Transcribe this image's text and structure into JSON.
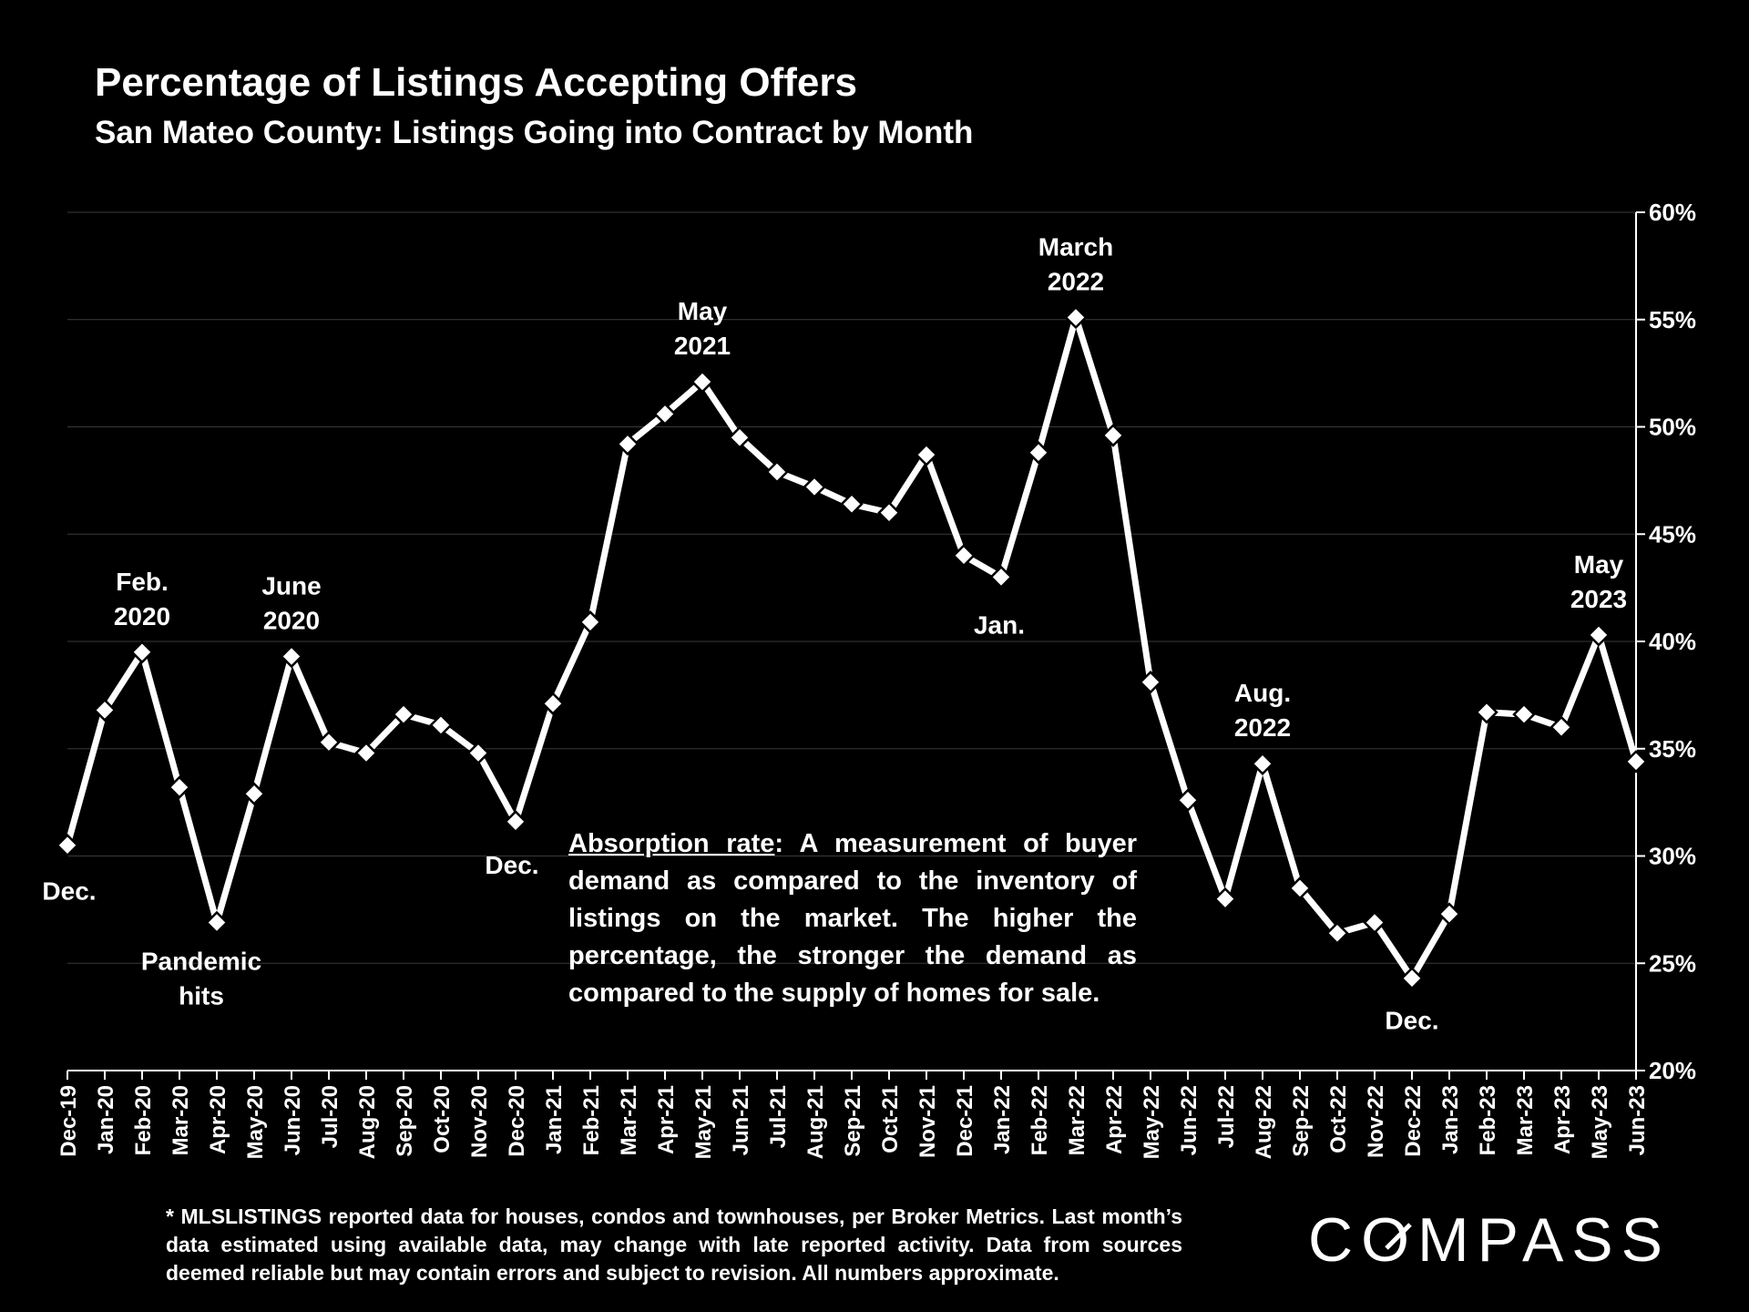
{
  "title": "Percentage of Listings Accepting Offers",
  "subtitle": "San Mateo County: Listings Going into Contract by Month",
  "definition": {
    "term": "Absorption rate",
    "text": ":  A measurement of buyer demand as compared to the inventory of listings on the market. The higher the percentage, the stronger the demand as compared to the supply of homes for sale."
  },
  "footnote": "* MLSLISTINGS reported data for houses, condos and townhouses, per Broker Metrics. Last month’s data estimated using available data, may change with late reported activity. Data from sources deemed reliable but may contain errors and subject to revision. All numbers approximate.",
  "logo_text": "COMPASS",
  "colors": {
    "background": "#000000",
    "line": "#ffffff",
    "grid": "#3a3a3a",
    "text": "#ffffff"
  },
  "chart_data": {
    "type": "line",
    "title": "Percentage of Listings Accepting Offers",
    "subtitle": "San Mateo County: Listings Going into Contract by Month",
    "x": [
      "Dec-19",
      "Jan-20",
      "Feb-20",
      "Mar-20",
      "Apr-20",
      "May-20",
      "Jun-20",
      "Jul-20",
      "Aug-20",
      "Sep-20",
      "Oct-20",
      "Nov-20",
      "Dec-20",
      "Jan-21",
      "Feb-21",
      "Mar-21",
      "Apr-21",
      "May-21",
      "Jun-21",
      "Jul-21",
      "Aug-21",
      "Sep-21",
      "Oct-21",
      "Nov-21",
      "Dec-21",
      "Jan-22",
      "Feb-22",
      "Mar-22",
      "Apr-22",
      "May-22",
      "Jun-22",
      "Jul-22",
      "Aug-22",
      "Sep-22",
      "Oct-22",
      "Nov-22",
      "Dec-22",
      "Jan-23",
      "Feb-23",
      "Mar-23",
      "Apr-23",
      "May-23",
      "Jun-23"
    ],
    "series": [
      {
        "values": [
          30.5,
          36.8,
          39.5,
          33.2,
          26.9,
          32.9,
          39.3,
          35.3,
          34.8,
          36.6,
          36.1,
          34.8,
          31.6,
          37.1,
          40.9,
          49.2,
          50.6,
          52.1,
          49.5,
          47.9,
          47.2,
          46.4,
          46.0,
          48.7,
          44.0,
          43.0,
          48.8,
          55.1,
          49.6,
          38.1,
          32.6,
          28.0,
          34.3,
          28.5,
          26.4,
          26.9,
          24.3,
          27.3,
          36.7,
          36.6,
          36.0,
          40.3,
          34.4
        ]
      }
    ],
    "ylim": [
      20,
      60
    ],
    "yticks": [
      20,
      25,
      30,
      35,
      40,
      45,
      50,
      55,
      60
    ],
    "ytick_labels": [
      "20%",
      "25%",
      "30%",
      "35%",
      "40%",
      "45%",
      "50%",
      "55%",
      "60%"
    ],
    "y_axis_side": "right",
    "grid": true,
    "legend": "none",
    "annotations": [
      {
        "index": 0,
        "lines": [
          "Dec."
        ],
        "where": "below"
      },
      {
        "index": 2,
        "lines": [
          "Feb.",
          "2020"
        ],
        "where": "above"
      },
      {
        "index": 4,
        "lines": [
          "Pandemic",
          "hits"
        ],
        "where": "below"
      },
      {
        "index": 6,
        "lines": [
          "June",
          "2020"
        ],
        "where": "above"
      },
      {
        "index": 12,
        "lines": [
          "Dec."
        ],
        "where": "below"
      },
      {
        "index": 17,
        "lines": [
          "May",
          "2021"
        ],
        "where": "above"
      },
      {
        "index": 25,
        "lines": [
          "Jan."
        ],
        "where": "below"
      },
      {
        "index": 27,
        "lines": [
          "March",
          "2022"
        ],
        "where": "above"
      },
      {
        "index": 32,
        "lines": [
          "Aug.",
          "2022"
        ],
        "where": "above"
      },
      {
        "index": 36,
        "lines": [
          "Dec."
        ],
        "where": "below"
      },
      {
        "index": 41,
        "lines": [
          "May",
          "2023"
        ],
        "where": "above"
      }
    ]
  }
}
